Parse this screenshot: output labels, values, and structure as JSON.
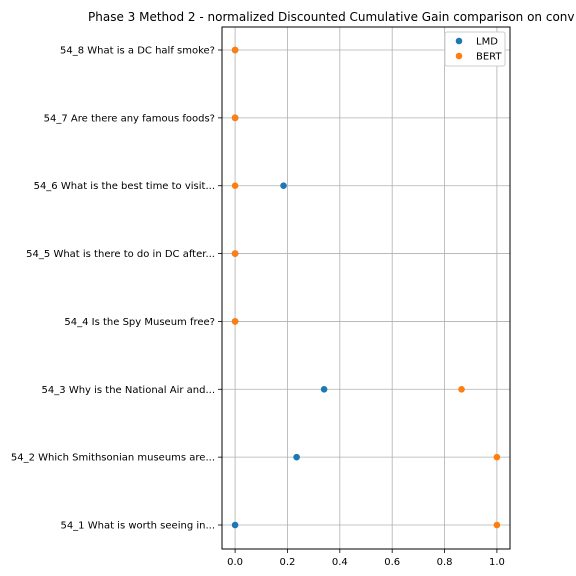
{
  "chart_data": {
    "type": "scatter",
    "title": "Phase 3 Method 2 - normalized Discounted Cumulative Gain comparison on conv",
    "xlabel": "",
    "ylabel": "",
    "xlim": [
      -0.05,
      1.05
    ],
    "xticks": [
      "0.0",
      "0.2",
      "0.4",
      "0.6",
      "0.8",
      "1.0"
    ],
    "xtick_values": [
      0,
      0.2,
      0.4,
      0.6,
      0.8,
      1.0
    ],
    "grid": true,
    "legend_position": "top-right",
    "categories": [
      "54_1 What is worth seeing in...",
      "54_2 Which Smithsonian museums are...",
      "54_3 Why is the National Air and...",
      "54_4 Is the Spy Museum free?",
      "54_5 What is there to do in DC after...",
      "54_6 What is the best time to visit...",
      "54_7 Are there any famous foods?",
      "54_8 What is a DC half smoke?"
    ],
    "series": [
      {
        "name": "LMD",
        "color": "#1f77b4",
        "values": [
          0.0,
          0.235,
          0.34,
          0.0,
          0.0,
          0.185,
          0.0,
          0.0
        ]
      },
      {
        "name": "BERT",
        "color": "#ff7f0e",
        "values": [
          1.0,
          1.0,
          0.865,
          0.0,
          0.0,
          0.0,
          0.0,
          0.0
        ]
      }
    ]
  }
}
